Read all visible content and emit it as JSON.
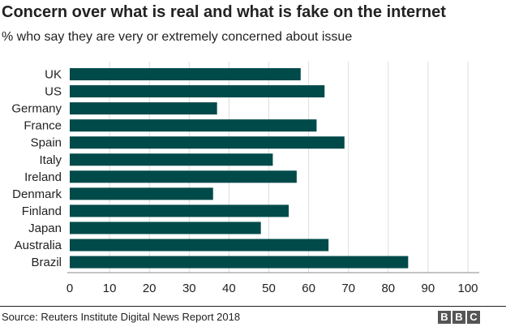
{
  "chart_data": {
    "type": "bar",
    "orientation": "horizontal",
    "title": "Concern over what is real and what is fake on the internet",
    "subtitle": "% who say they are very or extremely concerned about issue",
    "categories": [
      "UK",
      "US",
      "Germany",
      "France",
      "Spain",
      "Italy",
      "Ireland",
      "Denmark",
      "Finland",
      "Japan",
      "Australia",
      "Brazil"
    ],
    "values": [
      58,
      64,
      37,
      62,
      69,
      51,
      57,
      36,
      55,
      48,
      65,
      85
    ],
    "xlim": [
      0,
      100
    ],
    "xticks": [
      0,
      10,
      20,
      30,
      40,
      50,
      60,
      70,
      80,
      90,
      100
    ],
    "grid": true,
    "bar_color": "#004a4a"
  },
  "footer": {
    "source": "Source: Reuters Institute Digital News Report 2018",
    "logo_letters": [
      "B",
      "B",
      "C"
    ]
  }
}
